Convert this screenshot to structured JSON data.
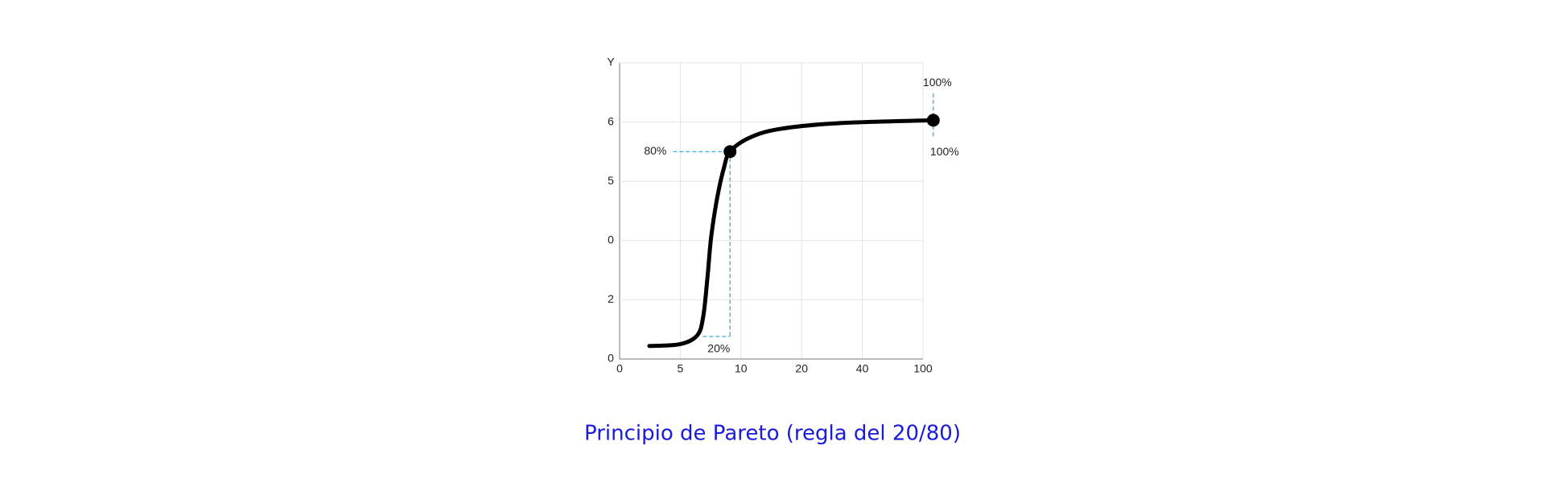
{
  "chart_data": {
    "type": "line",
    "title": "Principio de Pareto (regla del 20/80)",
    "y_label": "Y",
    "x": [
      0.49,
      0.99,
      1.28,
      1.38,
      1.45,
      1.51,
      1.61,
      1.72,
      1.82,
      2.13,
      2.62,
      3.59,
      5.17
    ],
    "values": [
      0.22,
      0.25,
      0.4,
      0.73,
      1.4,
      2.07,
      2.73,
      3.23,
      3.5,
      3.73,
      3.88,
      3.98,
      4.03
    ],
    "color": "#000000",
    "xlim": [
      0,
      5
    ],
    "ylim": [
      0,
      5
    ],
    "xticks": [
      {
        "value": 0,
        "label": "0"
      },
      {
        "value": 1,
        "label": "5"
      },
      {
        "value": 2,
        "label": "10"
      },
      {
        "value": 3,
        "label": "20"
      },
      {
        "value": 4,
        "label": "40"
      },
      {
        "value": 5,
        "label": "100"
      }
    ],
    "yticks": [
      {
        "value": 0,
        "label": "0"
      },
      {
        "value": 1,
        "label": "2"
      },
      {
        "value": 2,
        "label": "0"
      },
      {
        "value": 3,
        "label": "5"
      },
      {
        "value": 4,
        "label": "6"
      }
    ],
    "grid": true,
    "markers": [
      {
        "x": 1.82,
        "y": 3.5
      },
      {
        "x": 5.17,
        "y": 4.03
      }
    ],
    "guides": [
      {
        "x0": 0.88,
        "y0": 3.5,
        "x1": 1.82,
        "y1": 3.5
      },
      {
        "x0": 1.82,
        "y0": 3.5,
        "x1": 1.82,
        "y1": 0.38
      },
      {
        "x0": 1.37,
        "y0": 0.38,
        "x1": 1.82,
        "y1": 0.38
      },
      {
        "x0": 5.17,
        "y0": 4.48,
        "x1": 5.17,
        "y1": 3.73
      }
    ],
    "guide_color": "#3fa9e0",
    "annotations": [
      "80%",
      "20%",
      "100%",
      "100%"
    ]
  }
}
